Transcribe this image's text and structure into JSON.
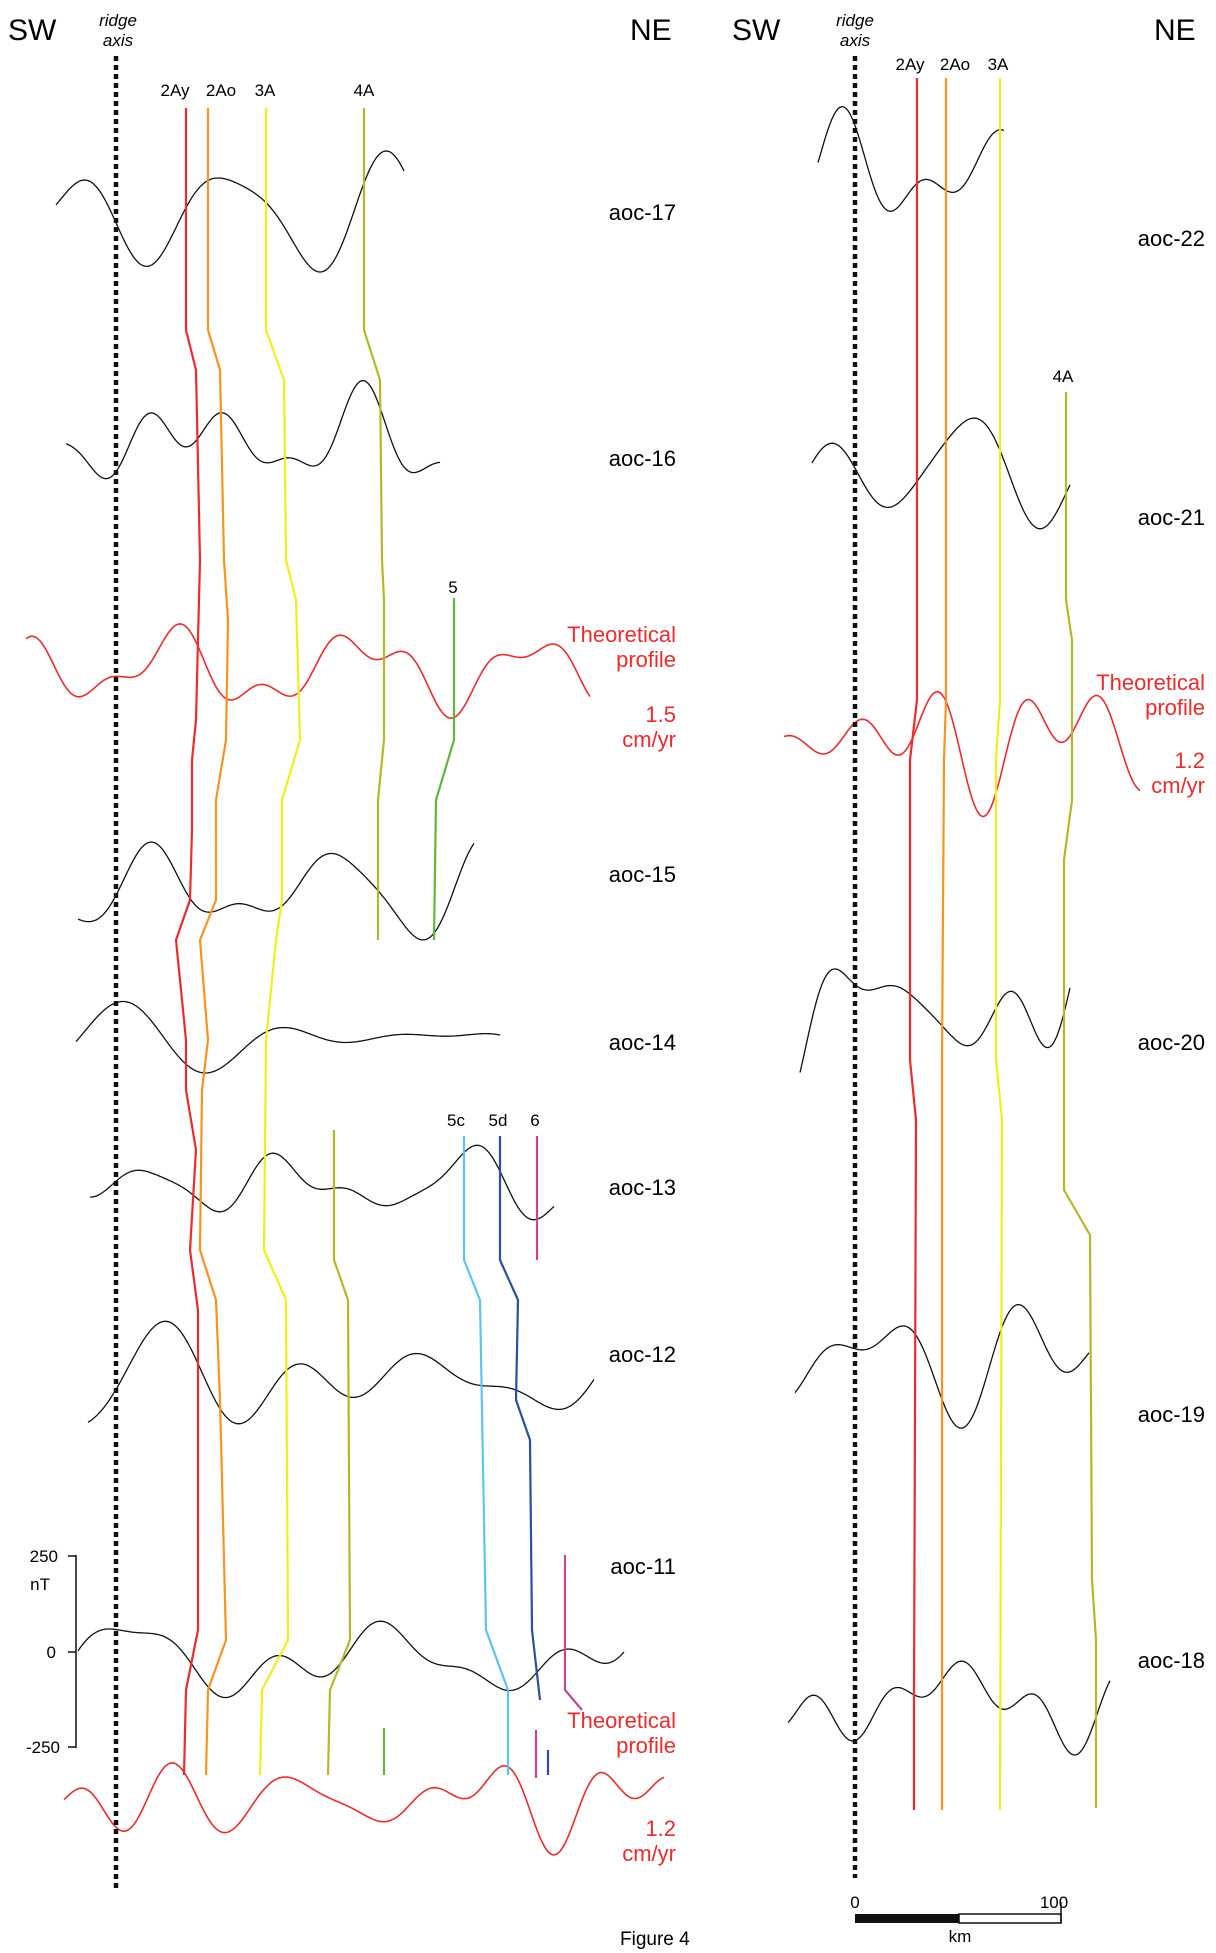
{
  "figure_label": "Figure 4",
  "colors": {
    "profile": "#111111",
    "theoretical": "#ee2b2b",
    "axis": "#111111",
    "2Ay": "#ee2b2b",
    "2Ao": "#f7941d",
    "3A": "#f2ee1a",
    "4A": "#b5b82a",
    "5": "#5fb83a",
    "5c": "#5ec3ee",
    "5d": "#2b4ea2",
    "6": "#c8468f"
  },
  "panels": [
    {
      "id": "left",
      "sw_label": "SW",
      "ne_label": "NE",
      "axis_label_line1": "ridge",
      "axis_label_line2": "axis",
      "chron_labels": [
        {
          "text": "2Ay",
          "chron": "2Ay"
        },
        {
          "text": "2Ao",
          "chron": "2Ao"
        },
        {
          "text": "3A",
          "chron": "3A"
        },
        {
          "text": "4A",
          "chron": "4A"
        },
        {
          "text": "5",
          "chron": "5"
        },
        {
          "text": "5c",
          "chron": "5c"
        },
        {
          "text": "5d",
          "chron": "5d"
        },
        {
          "text": "6",
          "chron": "6"
        }
      ],
      "profiles": [
        {
          "name": "aoc-17",
          "theoretical": false
        },
        {
          "name": "aoc-16",
          "theoretical": false
        },
        {
          "name": "Theoretical\nprofile\n\n1.5\ncm/yr",
          "label_lines": [
            "Theoretical",
            "profile",
            "1.5",
            "cm/yr"
          ],
          "theoretical": true
        },
        {
          "name": "aoc-15",
          "theoretical": false
        },
        {
          "name": "aoc-14",
          "theoretical": false
        },
        {
          "name": "aoc-13",
          "theoretical": false
        },
        {
          "name": "aoc-12",
          "theoretical": false
        },
        {
          "name": "aoc-11",
          "theoretical": false
        },
        {
          "name": "Theoretical\nprofile\n\n1.2\ncm/yr",
          "label_lines": [
            "Theoretical",
            "profile",
            "1.2",
            "cm/yr"
          ],
          "theoretical": true
        }
      ],
      "amplitude_scale": {
        "top": "250",
        "unit": "nT",
        "mid": "0",
        "bottom": "-250"
      }
    },
    {
      "id": "right",
      "sw_label": "SW",
      "ne_label": "NE",
      "axis_label_line1": "ridge",
      "axis_label_line2": "axis",
      "chron_labels": [
        {
          "text": "2Ay",
          "chron": "2Ay"
        },
        {
          "text": "2Ao",
          "chron": "2Ao"
        },
        {
          "text": "3A",
          "chron": "3A"
        },
        {
          "text": "4A",
          "chron": "4A"
        }
      ],
      "profiles": [
        {
          "name": "aoc-22",
          "theoretical": false
        },
        {
          "name": "aoc-21",
          "theoretical": false
        },
        {
          "name": "Theoretical\nprofile\n\n1.2\ncm/yr",
          "label_lines": [
            "Theoretical",
            "profile",
            "1.2",
            "cm/yr"
          ],
          "theoretical": true
        },
        {
          "name": "aoc-20",
          "theoretical": false
        },
        {
          "name": "aoc-19",
          "theoretical": false
        },
        {
          "name": "aoc-18",
          "theoretical": false
        }
      ],
      "distance_scale": {
        "start": "0",
        "end": "100",
        "unit": "km"
      }
    }
  ],
  "chart_data": [
    {
      "type": "line",
      "panel": "left",
      "series": [
        {
          "name": "aoc-17"
        },
        {
          "name": "aoc-16"
        },
        {
          "name": "Theoretical profile 1.5 cm/yr"
        },
        {
          "name": "aoc-15"
        },
        {
          "name": "aoc-14"
        },
        {
          "name": "aoc-13"
        },
        {
          "name": "aoc-12"
        },
        {
          "name": "aoc-11"
        },
        {
          "name": "Theoretical profile 1.2 cm/yr"
        }
      ],
      "amplitude_ticks": [
        250,
        0,
        -250
      ],
      "amplitude_unit": "nT",
      "chrons": [
        "2Ay",
        "2Ao",
        "3A",
        "4A",
        "5",
        "5c",
        "5d",
        "6"
      ]
    },
    {
      "type": "line",
      "panel": "right",
      "series": [
        {
          "name": "aoc-22"
        },
        {
          "name": "aoc-21"
        },
        {
          "name": "Theoretical profile 1.2 cm/yr"
        },
        {
          "name": "aoc-20"
        },
        {
          "name": "aoc-19"
        },
        {
          "name": "aoc-18"
        }
      ],
      "distance_ticks": [
        0,
        100
      ],
      "distance_unit": "km",
      "chrons": [
        "2Ay",
        "2Ao",
        "3A",
        "4A"
      ]
    }
  ]
}
